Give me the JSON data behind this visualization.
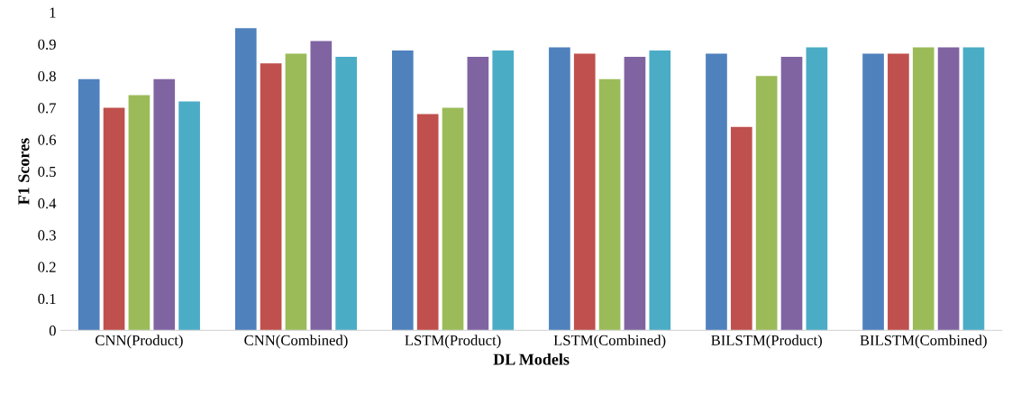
{
  "chart_data": {
    "type": "bar",
    "xlabel": "DL Models",
    "ylabel": "F1 Scores",
    "categories": [
      "CNN(Product)",
      "CNN(Combined)",
      "LSTM(Product)",
      "LSTM(Combined)",
      "BILSTM(Product)",
      "BILSTM(Combined)"
    ],
    "series": [
      {
        "color": "#4f81bd",
        "values": [
          0.79,
          0.95,
          0.88,
          0.89,
          0.87,
          0.87
        ]
      },
      {
        "color": "#c0504d",
        "values": [
          0.7,
          0.84,
          0.68,
          0.87,
          0.64,
          0.87
        ]
      },
      {
        "color": "#9bbb59",
        "values": [
          0.74,
          0.87,
          0.7,
          0.79,
          0.8,
          0.89
        ]
      },
      {
        "color": "#8064a2",
        "values": [
          0.79,
          0.91,
          0.86,
          0.86,
          0.86,
          0.89
        ]
      },
      {
        "color": "#4bacc6",
        "values": [
          0.72,
          0.86,
          0.88,
          0.88,
          0.89,
          0.89
        ]
      }
    ],
    "ylim": [
      0,
      1
    ],
    "yticks": [
      0,
      0.1,
      0.2,
      0.3,
      0.4,
      0.5,
      0.6,
      0.7,
      0.8,
      0.9,
      1
    ],
    "grid": false
  }
}
